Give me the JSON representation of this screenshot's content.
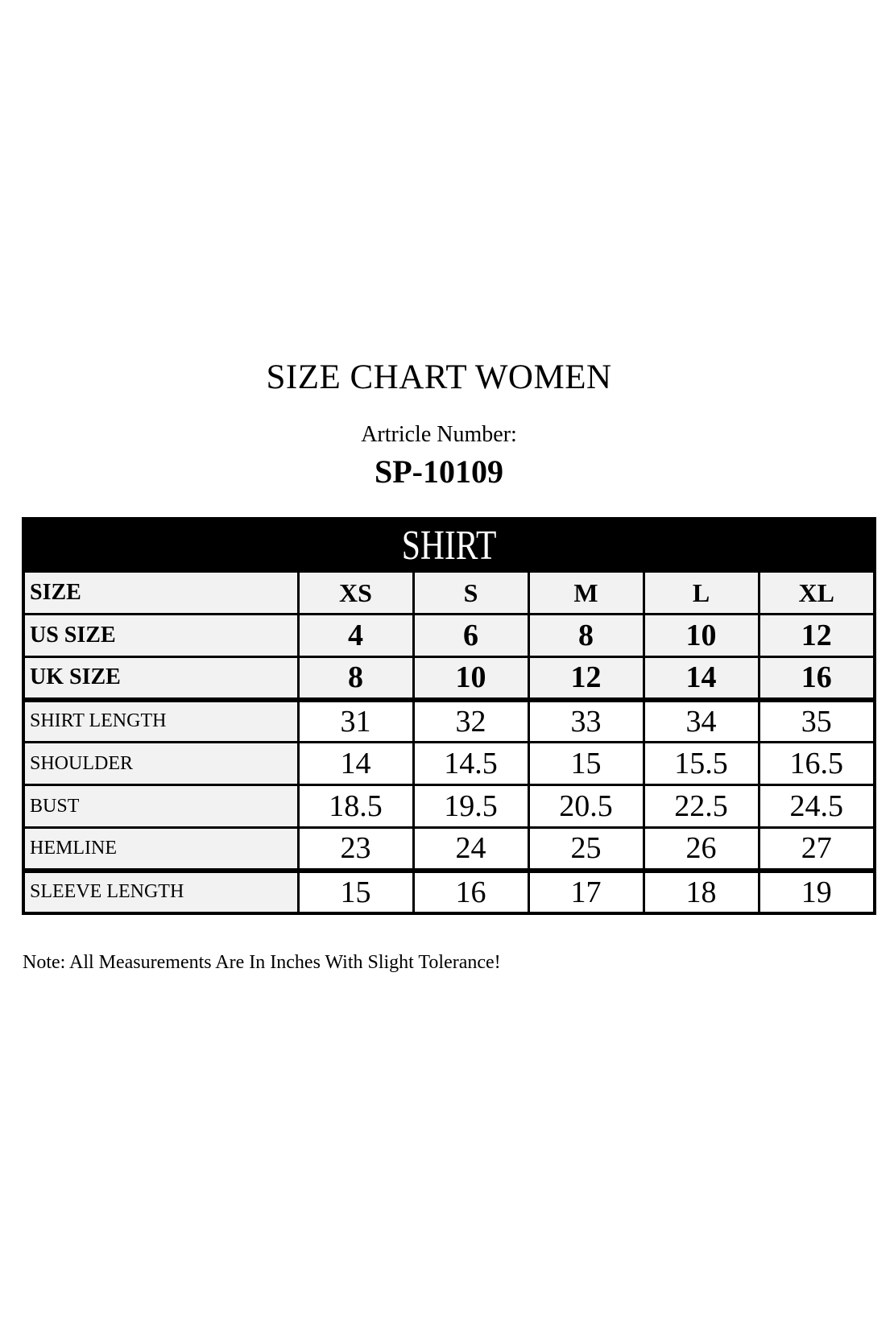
{
  "header": {
    "title": "SIZE CHART WOMEN",
    "article_label": "Artricle Number:",
    "article_number": "SP-10109"
  },
  "table": {
    "banner": "SHIRT",
    "rows": [
      {
        "label": "SIZE",
        "values": [
          "XS",
          "S",
          "M",
          "L",
          "XL"
        ]
      },
      {
        "label": "US SIZE",
        "values": [
          "4",
          "6",
          "8",
          "10",
          "12"
        ]
      },
      {
        "label": "UK SIZE",
        "values": [
          "8",
          "10",
          "12",
          "14",
          "16"
        ]
      },
      {
        "label": "SHIRT LENGTH",
        "values": [
          "31",
          "32",
          "33",
          "34",
          "35"
        ]
      },
      {
        "label": "SHOULDER",
        "values": [
          "14",
          "14.5",
          "15",
          "15.5",
          "16.5"
        ]
      },
      {
        "label": "BUST",
        "values": [
          "18.5",
          "19.5",
          "20.5",
          "22.5",
          "24.5"
        ]
      },
      {
        "label": "HEMLINE",
        "values": [
          "23",
          "24",
          "25",
          "26",
          "27"
        ]
      },
      {
        "label": "SLEEVE LENGTH",
        "values": [
          "15",
          "16",
          "17",
          "18",
          "19"
        ]
      }
    ]
  },
  "note": "Note: All Measurements Are In Inches With Slight Tolerance!",
  "colors": {
    "banner_bg": "#000000",
    "banner_text": "#ffffff",
    "cell_gray": "#f2f2f2",
    "text": "#000000",
    "page_bg": "#ffffff"
  },
  "chart_data": {
    "type": "table",
    "title": "SHIRT",
    "unit": "inches",
    "columns": [
      "SIZE",
      "XS",
      "S",
      "M",
      "L",
      "XL"
    ],
    "series": [
      {
        "name": "US SIZE",
        "values": [
          4,
          6,
          8,
          10,
          12
        ]
      },
      {
        "name": "UK SIZE",
        "values": [
          8,
          10,
          12,
          14,
          16
        ]
      },
      {
        "name": "SHIRT LENGTH",
        "values": [
          31,
          32,
          33,
          34,
          35
        ]
      },
      {
        "name": "SHOULDER",
        "values": [
          14,
          14.5,
          15,
          15.5,
          16.5
        ]
      },
      {
        "name": "BUST",
        "values": [
          18.5,
          19.5,
          20.5,
          22.5,
          24.5
        ]
      },
      {
        "name": "HEMLINE",
        "values": [
          23,
          24,
          25,
          26,
          27
        ]
      },
      {
        "name": "SLEEVE LENGTH",
        "values": [
          15,
          16,
          17,
          18,
          19
        ]
      }
    ]
  }
}
